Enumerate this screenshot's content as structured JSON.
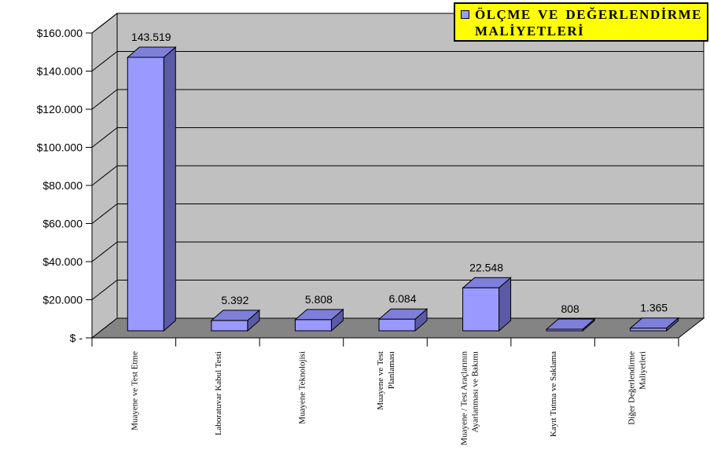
{
  "chart_data": {
    "type": "bar",
    "style": "3d-column",
    "title": "ÖLÇME VE DEĞERLENDİRME MALİYETLERİ",
    "legend": {
      "label": "ÖLÇME VE DEĞERLENDİRME MALİYETLERİ",
      "position": "top-right",
      "marker_color": "#9999FF",
      "bg_color": "#FFFF00"
    },
    "categories": [
      "Muayene ve Test Etme",
      "Laboratuvar Kabul Testi",
      "Muayene Teknolojisi",
      "Muayene ve Test Planlaması",
      "Muayene / Test Araçlarının Ayarlanması ve Bakımı",
      "Kayıt Tutma ve Saklama",
      "Diğer Değerlendirme Maliyetleri"
    ],
    "category_label_lines": [
      [
        "Muayene ve Test Etme"
      ],
      [
        "Laboratuvar Kabul Testi"
      ],
      [
        "Muayene Teknolojisi"
      ],
      [
        "Muayene ve Test",
        "Planlaması"
      ],
      [
        "Muayene / Test Araçlarının",
        "Ayarlanması ve Bakımı"
      ],
      [
        "Kayıt Tutma ve Saklama"
      ],
      [
        "Diğer Değerlendirme",
        "Maliyetleri"
      ]
    ],
    "values": [
      143519,
      5392,
      5808,
      6084,
      22548,
      808,
      1365
    ],
    "value_labels": [
      "143.519",
      "5.392",
      "5.808",
      "6.084",
      "22.548",
      "808",
      "1.365"
    ],
    "y_axis": {
      "min": 0,
      "max": 160000,
      "step": 20000,
      "tick_labels": [
        "$ -",
        "$20.000",
        "$40.000",
        "$60.000",
        "$80.000",
        "$100.000",
        "$120.000",
        "$140.000",
        "$160.000"
      ]
    },
    "grid": true,
    "colors": {
      "bar_front": "#9999FF",
      "bar_top": "#7E7EDB",
      "bar_side": "#5A5AA5",
      "wall": "#C0C0C0",
      "floor": "#848484",
      "outline": "#000000",
      "legend_bg": "#FFFF00",
      "background": "#FFFFFF",
      "text": "#000000"
    }
  }
}
